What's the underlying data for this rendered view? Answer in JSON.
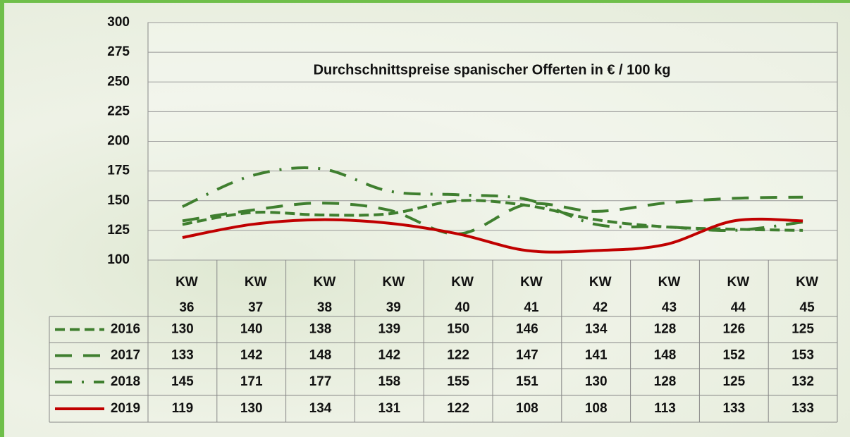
{
  "chart_data": {
    "type": "line",
    "title": "Durchschnittspreise spanischer Offerten in € / 100 kg",
    "categories": [
      "KW 36",
      "KW 37",
      "KW 38",
      "KW 39",
      "KW 40",
      "KW 41",
      "KW 42",
      "KW 43",
      "KW 44",
      "KW 45"
    ],
    "ylim": [
      100,
      300
    ],
    "yticks": [
      100,
      125,
      150,
      175,
      200,
      225,
      250,
      275,
      300
    ],
    "grid": true,
    "series": [
      {
        "name": "2016",
        "color": "#3f7f2f",
        "values": [
          130,
          140,
          138,
          139,
          150,
          146,
          134,
          128,
          126,
          125
        ]
      },
      {
        "name": "2017",
        "color": "#3f7f2f",
        "values": [
          133,
          142,
          148,
          142,
          122,
          147,
          141,
          148,
          152,
          153
        ]
      },
      {
        "name": "2018",
        "color": "#3f7f2f",
        "values": [
          145,
          171,
          177,
          158,
          155,
          151,
          130,
          128,
          125,
          132
        ]
      },
      {
        "name": "2019",
        "color": "#c00000",
        "values": [
          119,
          130,
          134,
          131,
          122,
          108,
          108,
          113,
          133,
          133
        ]
      }
    ]
  }
}
